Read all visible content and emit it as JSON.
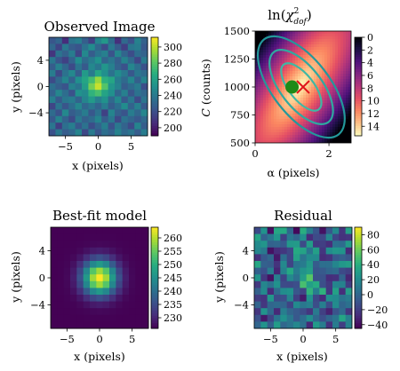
{
  "chart_data": [
    {
      "type": "heatmap",
      "title": "Observed Image",
      "xlabel": "x (pixels)",
      "ylabel": "y (pixels)",
      "xlim": [
        -7.5,
        7.5
      ],
      "ylim": [
        -7.5,
        7.5
      ],
      "xticks": [
        -5,
        0,
        5
      ],
      "yticks": [
        -4,
        0,
        4
      ],
      "colorbar": {
        "ticks": [
          300,
          280,
          260,
          240,
          220,
          200
        ],
        "range": [
          190,
          312
        ]
      },
      "grid": [
        [
          223,
          230,
          206,
          237,
          242,
          227,
          214,
          245,
          255,
          233,
          207,
          232,
          221,
          244,
          228
        ],
        [
          231,
          215,
          239,
          226,
          222,
          236,
          249,
          231,
          218,
          240,
          226,
          213,
          238,
          241,
          224
        ],
        [
          209,
          236,
          228,
          241,
          216,
          247,
          226,
          237,
          243,
          222,
          246,
          230,
          219,
          234,
          229
        ],
        [
          238,
          222,
          214,
          229,
          249,
          233,
          241,
          252,
          230,
          238,
          227,
          244,
          232,
          216,
          240
        ],
        [
          226,
          243,
          231,
          218,
          237,
          225,
          247,
          238,
          254,
          243,
          229,
          221,
          246,
          235,
          221
        ],
        [
          241,
          217,
          236,
          247,
          226,
          256,
          240,
          262,
          251,
          236,
          249,
          239,
          224,
          238,
          233
        ],
        [
          218,
          232,
          245,
          229,
          251,
          262,
          274,
          293,
          268,
          262,
          241,
          232,
          246,
          227,
          244
        ],
        [
          235,
          227,
          222,
          244,
          237,
          258,
          286,
          302,
          279,
          254,
          244,
          226,
          233,
          240,
          219
        ],
        [
          229,
          246,
          234,
          221,
          252,
          248,
          269,
          276,
          261,
          251,
          230,
          243,
          223,
          236,
          231
        ],
        [
          242,
          225,
          238,
          241,
          229,
          245,
          256,
          243,
          252,
          232,
          247,
          225,
          238,
          218,
          237
        ],
        [
          216,
          237,
          223,
          234,
          246,
          231,
          238,
          229,
          241,
          226,
          235,
          249,
          229,
          243,
          225
        ],
        [
          233,
          221,
          247,
          226,
          232,
          241,
          224,
          236,
          214,
          245,
          228,
          222,
          241,
          231,
          246
        ],
        [
          225,
          244,
          229,
          218,
          239,
          228,
          233,
          245,
          226,
          238,
          217,
          236,
          230,
          224,
          232
        ],
        [
          238,
          213,
          235,
          242,
          224,
          236,
          219,
          230,
          242,
          221,
          239,
          229,
          218,
          245,
          226
        ],
        [
          221,
          239,
          226,
          231,
          245,
          217,
          240,
          223,
          235,
          229,
          244,
          232,
          237,
          226,
          241
        ]
      ]
    },
    {
      "type": "heatmap",
      "title_prefix": "ln(",
      "title_chi": "χ",
      "title_sup": "2",
      "title_sub": "dof",
      "title_suffix": ")",
      "xlabel": "α (pixels)",
      "ylabel_var": "C",
      "ylabel_unit": "(counts)",
      "xlim": [
        0,
        2.6
      ],
      "ylim": [
        500,
        1500
      ],
      "xticks": [
        0,
        2
      ],
      "yticks": [
        500,
        750,
        1000,
        1250,
        1500
      ],
      "colorbar": {
        "ticks": [
          0,
          2,
          4,
          6,
          8,
          10,
          12,
          14
        ],
        "range": [
          0,
          15.5
        ],
        "reversed": true
      },
      "contour_levels": [
        0.6,
        1.3,
        2.0
      ],
      "best_fit": {
        "alpha": 1.0,
        "C": 1000
      },
      "true_value": {
        "alpha": 1.3,
        "C": 1000
      }
    },
    {
      "type": "heatmap",
      "title": "Best-fit model",
      "xlabel": "x (pixels)",
      "ylabel": "y (pixels)",
      "xlim": [
        -7.5,
        7.5
      ],
      "ylim": [
        -7.5,
        7.5
      ],
      "xticks": [
        -5,
        0,
        5
      ],
      "yticks": [
        -4,
        0,
        4
      ],
      "colorbar": {
        "ticks": [
          260,
          255,
          250,
          245,
          240,
          235,
          230
        ],
        "range": [
          226,
          264
        ]
      },
      "model": {
        "background": 226,
        "peak_x": 0,
        "peak_y": 0,
        "amplitude": 38,
        "sigma": 1.8
      }
    },
    {
      "type": "heatmap",
      "title": "Residual",
      "xlabel": "x (pixels)",
      "ylabel": "y (pixels)",
      "xlim": [
        -7.5,
        7.5
      ],
      "ylim": [
        -7.5,
        7.5
      ],
      "xticks": [
        -5,
        0,
        5
      ],
      "yticks": [
        -4,
        0,
        4
      ],
      "colorbar": {
        "ticks": [
          80,
          60,
          40,
          20,
          0,
          -20,
          -40
        ],
        "range": [
          -45,
          90
        ]
      }
    }
  ]
}
